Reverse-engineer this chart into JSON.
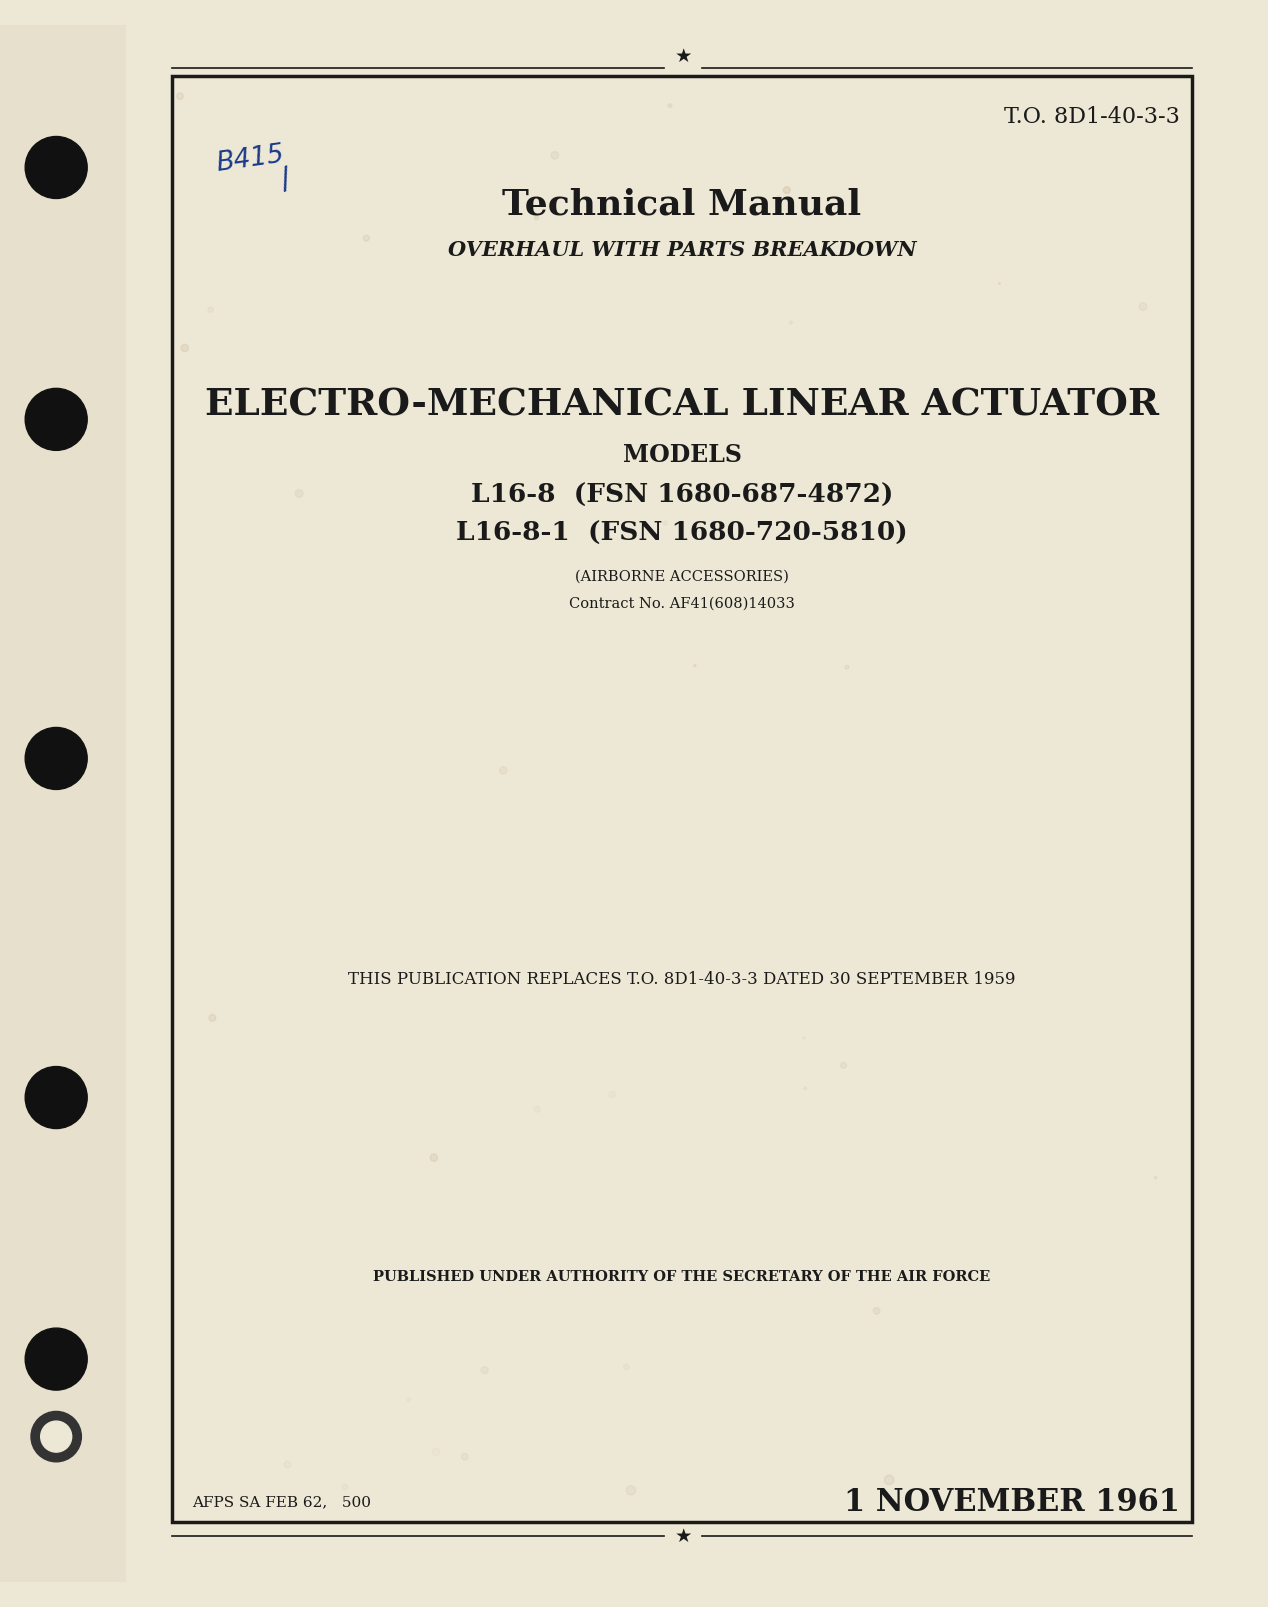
{
  "bg_color": "#ede8d5",
  "page_bg": "#ede8d5",
  "border_color": "#1a1a1a",
  "text_color": "#1a1a1a",
  "to_number": "T.O. 8D1-40-3-3",
  "title1": "Technical Manual",
  "title2": "OVERHAUL WITH PARTS BREAKDOWN",
  "main_title": "ELECTRO-MECHANICAL LINEAR ACTUATOR",
  "models_label": "MODELS",
  "model1": "L16-8  (FSN 1680-687-4872)",
  "model2": "L16-8-1  (FSN 1680-720-5810)",
  "airborne": "(AIRBORNE ACCESSORIES)",
  "contract": "Contract No. AF41(608)14033",
  "replaces": "THIS PUBLICATION REPLACES T.O. 8D1-40-3-3 DATED 30 SEPTEMBER 1959",
  "authority": "PUBLISHED UNDER AUTHORITY OF THE SECRETARY OF THE AIR FORCE",
  "footer_left": "AFPS SA FEB 62,   500",
  "date": "1 NOVEMBER 1961",
  "handwritten": "B415",
  "handwritten_slash": "/"
}
